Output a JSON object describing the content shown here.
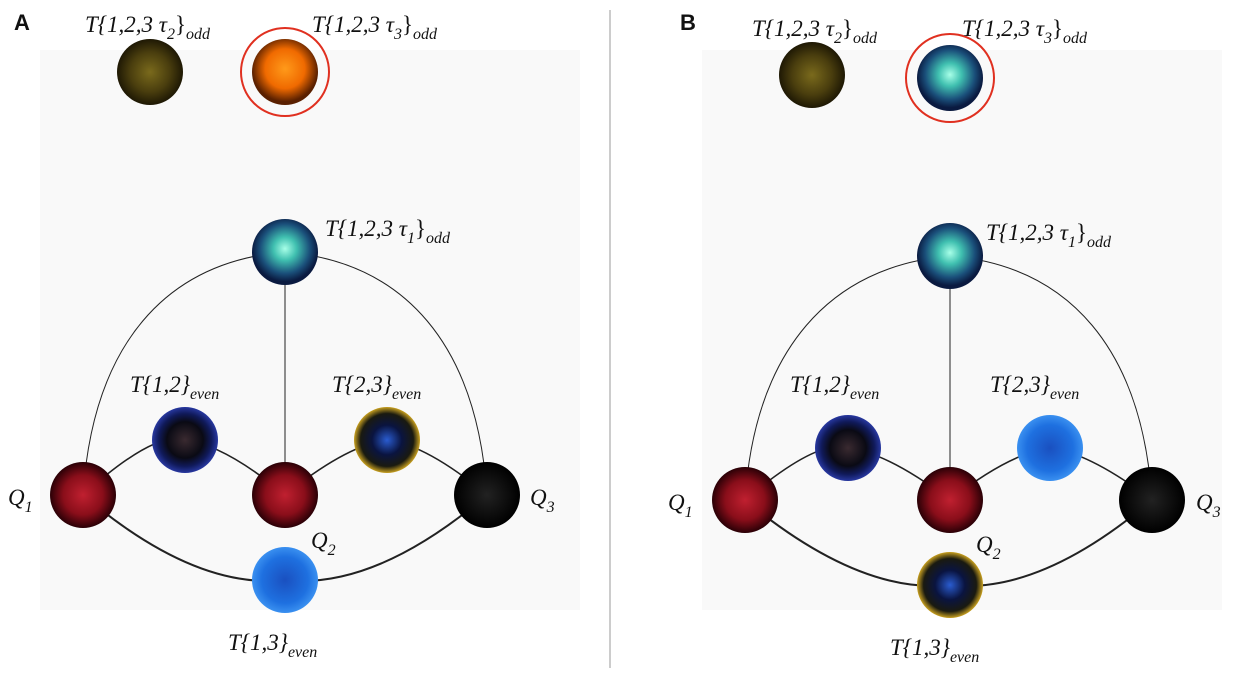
{
  "panels": [
    {
      "letter": "A",
      "labels": [
        [
          [
            "T{1,2,3 τ",
            "2"
          ],
          [
            "}",
            "odd"
          ]
        ],
        [
          [
            "T{1,2,3 τ",
            "3"
          ],
          [
            "}",
            "odd"
          ]
        ],
        [
          [
            "T{1,2,3 τ",
            "1"
          ],
          [
            "}",
            "odd"
          ]
        ],
        [
          [
            "T{1,2}",
            "even"
          ]
        ],
        [
          [
            "T{2,3}",
            "even"
          ]
        ],
        [
          [
            "Q",
            "1"
          ]
        ],
        [
          [
            "Q",
            "2"
          ]
        ],
        [
          [
            "Q",
            "3"
          ]
        ],
        [
          [
            "T{1,3}",
            "even"
          ]
        ]
      ]
    },
    {
      "letter": "B",
      "labels": [
        [
          [
            "T{1,2,3 τ",
            "2"
          ],
          [
            "}",
            "odd"
          ]
        ],
        [
          [
            "T{1,2,3 τ",
            "3"
          ],
          [
            "}",
            "odd"
          ]
        ],
        [
          [
            "T{1,2,3 τ",
            "1"
          ],
          [
            "}",
            "odd"
          ]
        ],
        [
          [
            "T{1,2}",
            "even"
          ]
        ],
        [
          [
            "T{2,3}",
            "even"
          ]
        ],
        [
          [
            "Q",
            "1"
          ]
        ],
        [
          [
            "Q",
            "2"
          ]
        ],
        [
          [
            "Q",
            "3"
          ]
        ],
        [
          [
            "T{1,3}",
            "even"
          ]
        ]
      ]
    }
  ]
}
